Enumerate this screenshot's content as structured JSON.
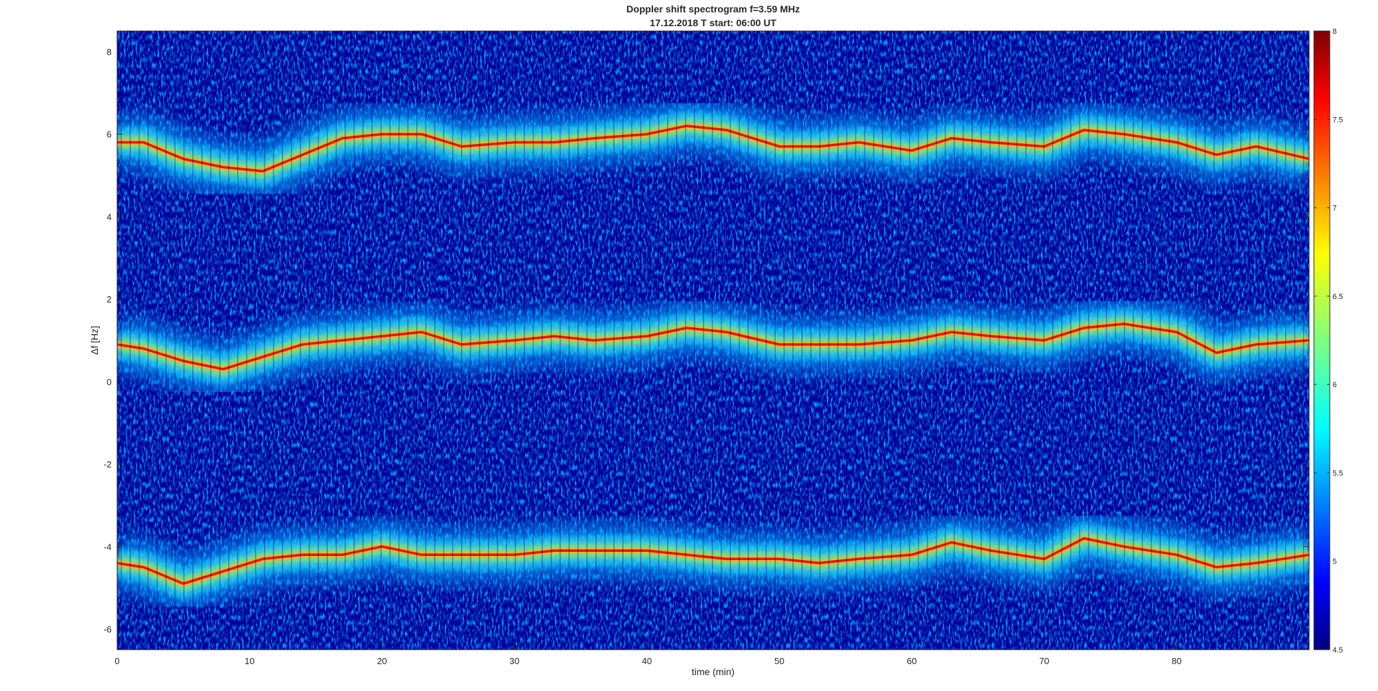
{
  "chart_data": {
    "type": "heatmap",
    "title": "Doppler shift spectrogram f=3.59 MHz",
    "subtitle": "17.12.2018   T start: 06:00 UT",
    "xlabel": "time (min)",
    "ylabel": "Δf [Hz]",
    "xlim": [
      0,
      90
    ],
    "ylim": [
      -6.5,
      8.5
    ],
    "x_ticks": [
      "0",
      "10",
      "20",
      "30",
      "40",
      "50",
      "60",
      "70",
      "80"
    ],
    "y_ticks": [
      "-6",
      "-4",
      "-2",
      "0",
      "2",
      "4",
      "6",
      "8"
    ],
    "colormap": "jet",
    "colorbar": {
      "limits": [
        4.5,
        8
      ],
      "ticks": [
        "4.5",
        "5",
        "5.5",
        "6",
        "6.5",
        "7",
        "7.5",
        "8"
      ]
    },
    "series": [
      {
        "x": [
          0,
          2,
          5,
          8,
          11,
          14,
          17,
          20,
          23,
          26,
          30,
          33,
          36,
          40,
          43,
          46,
          50,
          53,
          56,
          60,
          63,
          66,
          70,
          73,
          76,
          80,
          83,
          86,
          90
        ],
        "y": [
          5.8,
          5.8,
          5.4,
          5.2,
          5.1,
          5.5,
          5.9,
          6.0,
          6.0,
          5.7,
          5.8,
          5.8,
          5.9,
          6.0,
          6.2,
          6.1,
          5.7,
          5.7,
          5.8,
          5.6,
          5.9,
          5.8,
          5.7,
          6.1,
          6.0,
          5.8,
          5.5,
          5.7,
          5.4
        ]
      },
      {
        "x": [
          0,
          2,
          5,
          8,
          11,
          14,
          17,
          20,
          23,
          26,
          30,
          33,
          36,
          40,
          43,
          46,
          50,
          53,
          56,
          60,
          63,
          66,
          70,
          73,
          76,
          80,
          83,
          86,
          90
        ],
        "y": [
          0.9,
          0.8,
          0.5,
          0.3,
          0.6,
          0.9,
          1.0,
          1.1,
          1.2,
          0.9,
          1.0,
          1.1,
          1.0,
          1.1,
          1.3,
          1.2,
          0.9,
          0.9,
          0.9,
          1.0,
          1.2,
          1.1,
          1.0,
          1.3,
          1.4,
          1.2,
          0.7,
          0.9,
          1.0
        ]
      },
      {
        "x": [
          0,
          2,
          5,
          8,
          11,
          14,
          17,
          20,
          23,
          26,
          30,
          33,
          36,
          40,
          43,
          46,
          50,
          53,
          56,
          60,
          63,
          66,
          70,
          73,
          76,
          80,
          83,
          86,
          90
        ],
        "y": [
          -4.4,
          -4.5,
          -4.9,
          -4.6,
          -4.3,
          -4.2,
          -4.2,
          -4.0,
          -4.2,
          -4.2,
          -4.2,
          -4.1,
          -4.1,
          -4.1,
          -4.2,
          -4.3,
          -4.3,
          -4.4,
          -4.3,
          -4.2,
          -3.9,
          -4.1,
          -4.3,
          -3.8,
          -4.0,
          -4.2,
          -4.5,
          -4.4,
          -4.2
        ]
      }
    ]
  }
}
